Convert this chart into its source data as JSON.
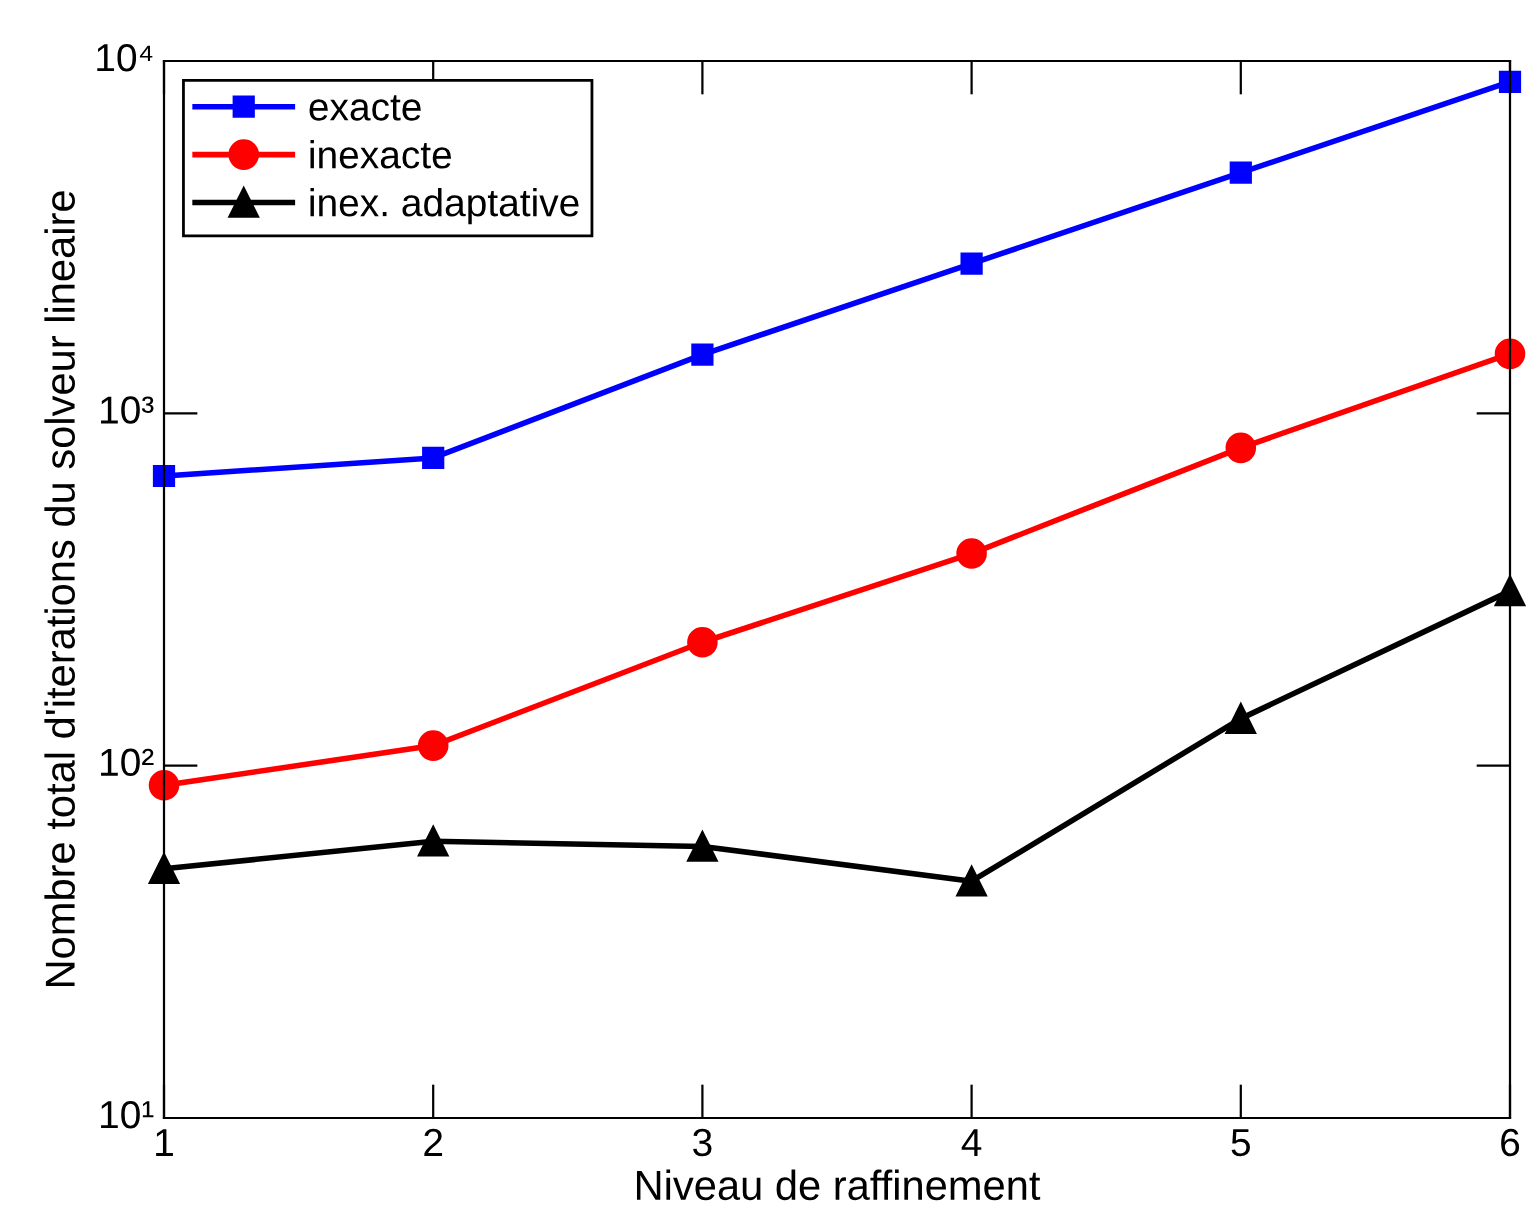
{
  "chart_data": {
    "type": "line",
    "xlabel": "Niveau de raffinement",
    "ylabel": "Nombre total d'iterations du solveur lineaire",
    "log": "y",
    "x": [
      1,
      2,
      3,
      4,
      5,
      6
    ],
    "xlim": [
      1,
      6
    ],
    "xticks": [
      1,
      2,
      3,
      4,
      5,
      6
    ],
    "ylim": [
      10,
      10000
    ],
    "yticks": [
      {
        "value": 10,
        "label": "10¹"
      },
      {
        "value": 100,
        "label": "10²"
      },
      {
        "value": 1000,
        "label": "10³"
      },
      {
        "value": 10000,
        "label": "10⁴"
      }
    ],
    "grid": false,
    "legend": "top left",
    "line_style": "solid",
    "series": [
      {
        "name": "exacte",
        "color": "#0000ff",
        "marker": "square",
        "values": [
          664,
          747,
          1468,
          2660,
          4820,
          8730
        ]
      },
      {
        "name": "inexacte",
        "color": "#ff0000",
        "marker": "circle",
        "values": [
          88,
          114,
          224,
          400,
          798,
          1475
        ]
      },
      {
        "name": "inex. adaptative",
        "color": "#000000",
        "marker": "triangle",
        "values": [
          51,
          61,
          59,
          47,
          136,
          313
        ]
      }
    ]
  }
}
